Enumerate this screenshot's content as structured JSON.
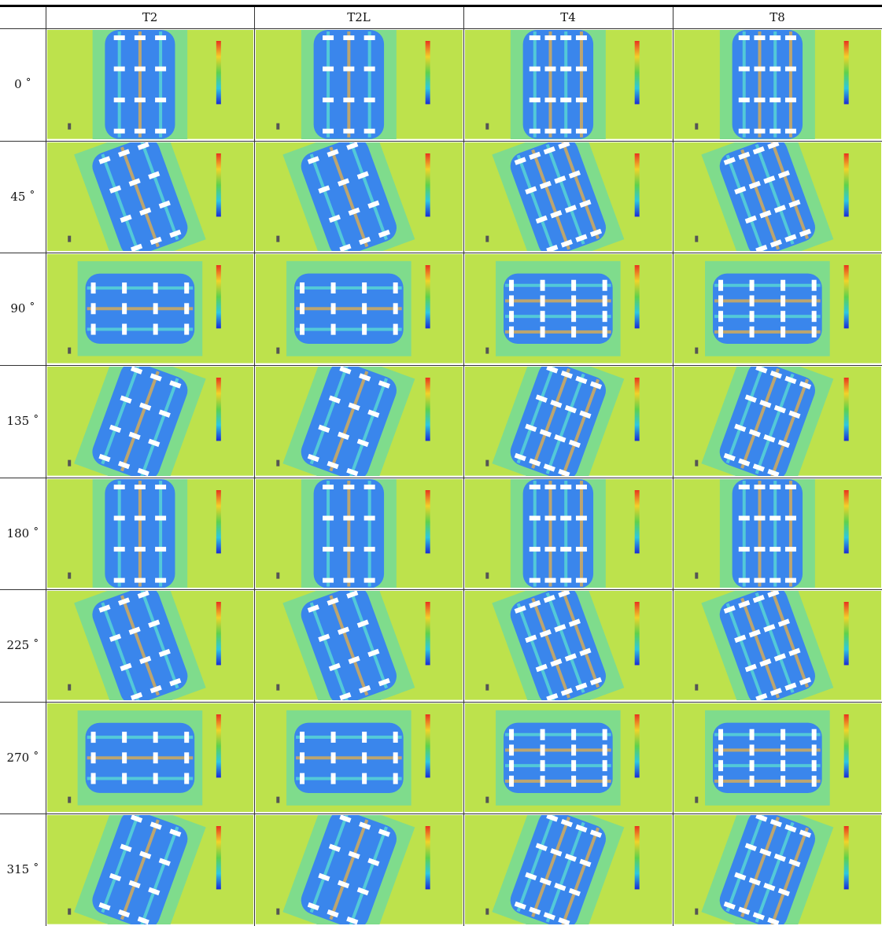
{
  "table": {
    "columns": [
      "T2",
      "T2L",
      "T4",
      "T8"
    ],
    "rows": [
      "0 ˚",
      "45 ˚",
      "90 ˚",
      "135 ˚",
      "180 ˚",
      "225 ˚",
      "270 ˚",
      "315 ˚"
    ]
  }
}
